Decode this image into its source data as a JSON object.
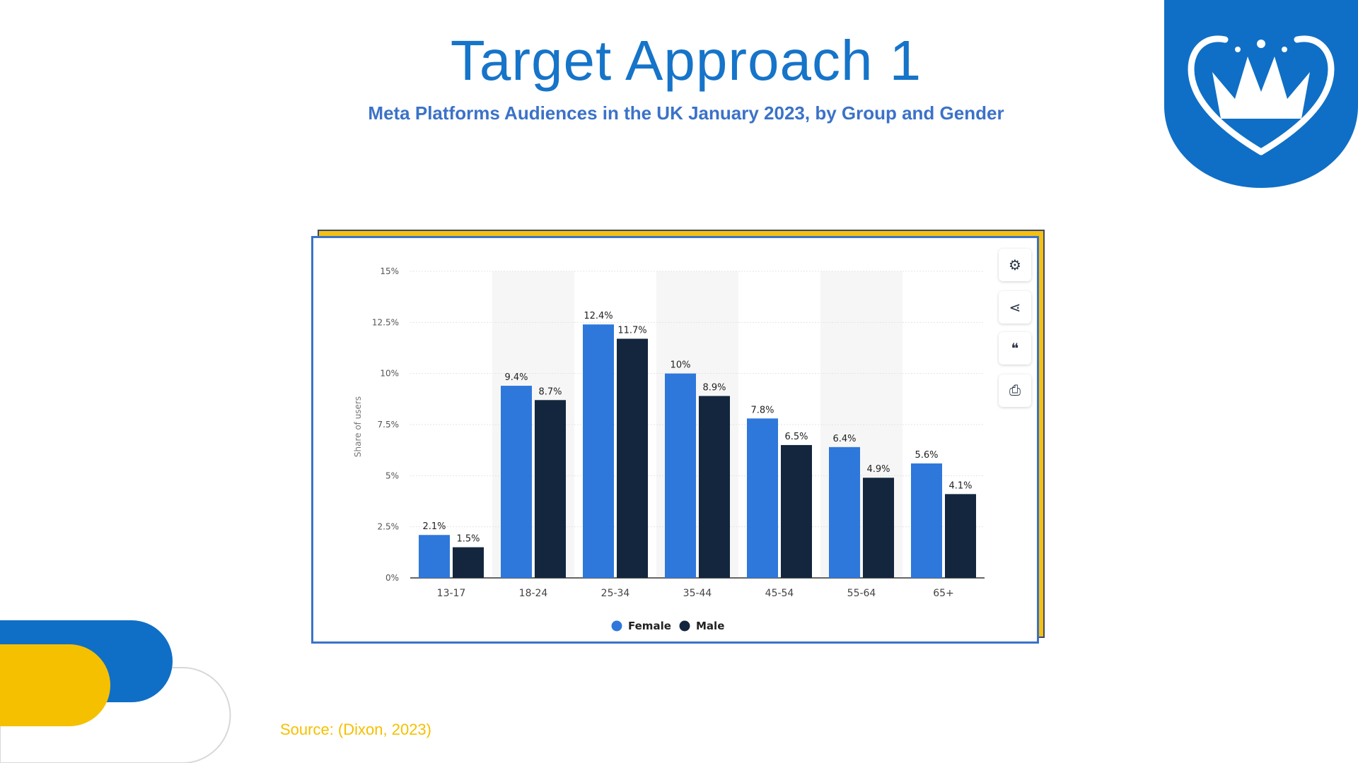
{
  "slide": {
    "title": "Target Approach 1",
    "subtitle": "Meta Platforms Audiences in the UK January 2023, by Group and Gender",
    "source": "Source: (Dixon, 2023)"
  },
  "colors": {
    "title": "#1674c9",
    "subtitle": "#3b72c8",
    "brand_blue": "#0f6fc6",
    "brand_yellow": "#f5c000",
    "female": "#2e78db",
    "male": "#13263d"
  },
  "toolbar": [
    {
      "icon": "gear-icon",
      "glyph": "⚙"
    },
    {
      "icon": "share-icon",
      "glyph": "⋖"
    },
    {
      "icon": "quote-icon",
      "glyph": "❝"
    },
    {
      "icon": "print-icon",
      "glyph": "⎙"
    }
  ],
  "chart_data": {
    "type": "bar",
    "categories": [
      "13-17",
      "18-24",
      "25-34",
      "35-44",
      "45-54",
      "55-64",
      "65+"
    ],
    "series": [
      {
        "name": "Female",
        "values": [
          2.1,
          9.4,
          12.4,
          10,
          7.8,
          6.4,
          5.6
        ],
        "labels": [
          "2.1%",
          "9.4%",
          "12.4%",
          "10%",
          "7.8%",
          "6.4%",
          "5.6%"
        ]
      },
      {
        "name": "Male",
        "values": [
          1.5,
          8.7,
          11.7,
          8.9,
          6.5,
          4.9,
          4.1
        ],
        "labels": [
          "1.5%",
          "8.7%",
          "11.7%",
          "8.9%",
          "6.5%",
          "4.9%",
          "4.1%"
        ]
      }
    ],
    "ylabel": "Share of users",
    "ylim": [
      0,
      15
    ],
    "yticks": [
      0,
      2.5,
      5,
      7.5,
      10,
      12.5,
      15
    ],
    "ytick_labels": [
      "0%",
      "2.5%",
      "5%",
      "7.5%",
      "10%",
      "12.5%",
      "15%"
    ],
    "grid": true,
    "legend": "bottom"
  }
}
